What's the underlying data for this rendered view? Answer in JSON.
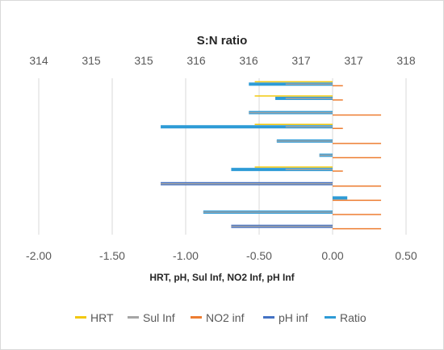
{
  "chart_data": {
    "type": "bar",
    "title": "S:N ratio",
    "xlabel": "HRT, pH, Sul Inf, NO2 Inf, pH Inf",
    "top_axis": {
      "ticks": [
        "314",
        "315",
        "315",
        "316",
        "316",
        "317",
        "317",
        "318"
      ],
      "range": [
        314,
        318
      ]
    },
    "bottom_axis": {
      "ticks": [
        "-2.00",
        "-1.50",
        "-1.00",
        "-0.50",
        "0.00",
        "0.50"
      ],
      "range": [
        -2.0,
        0.5
      ]
    },
    "legend_position": "bottom",
    "series": [
      {
        "name": "HRT",
        "color": "#f2c80f"
      },
      {
        "name": "Sul Inf",
        "color": "#a5a5a5"
      },
      {
        "name": "NO2 inf",
        "color": "#ed7d31"
      },
      {
        "name": "pH inf",
        "color": "#4472c4"
      },
      {
        "name": "Ratio",
        "color": "#2e9bd6"
      }
    ],
    "rows": [
      {
        "ratio": -0.57,
        "hrt": -0.53,
        "sul": -0.32,
        "no2": 0.07
      },
      {
        "ratio": -0.39,
        "hrt": -0.53,
        "sul": -0.32,
        "no2": 0.07
      },
      {
        "ratio": -0.57,
        "hrt": null,
        "sul": -0.57,
        "no2": 0.33
      },
      {
        "ratio": -1.17,
        "hrt": -0.53,
        "sul": -0.32,
        "no2": 0.07
      },
      {
        "ratio": -0.38,
        "hrt": null,
        "sul": -0.38,
        "no2": 0.33
      },
      {
        "ratio": -0.09,
        "hrt": null,
        "sul": -0.09,
        "no2": 0.33
      },
      {
        "ratio": -0.69,
        "hrt": -0.53,
        "sul": -0.32,
        "no2": 0.07
      },
      {
        "ph": -1.17,
        "sul": -1.17,
        "no2": 0.33
      },
      {
        "ratio": 0.1,
        "no2": 0.33
      },
      {
        "ratio": -0.88,
        "sul": -0.88,
        "no2": 0.33
      },
      {
        "ph": -0.69,
        "sul": -0.69,
        "no2": 0.33
      }
    ]
  }
}
